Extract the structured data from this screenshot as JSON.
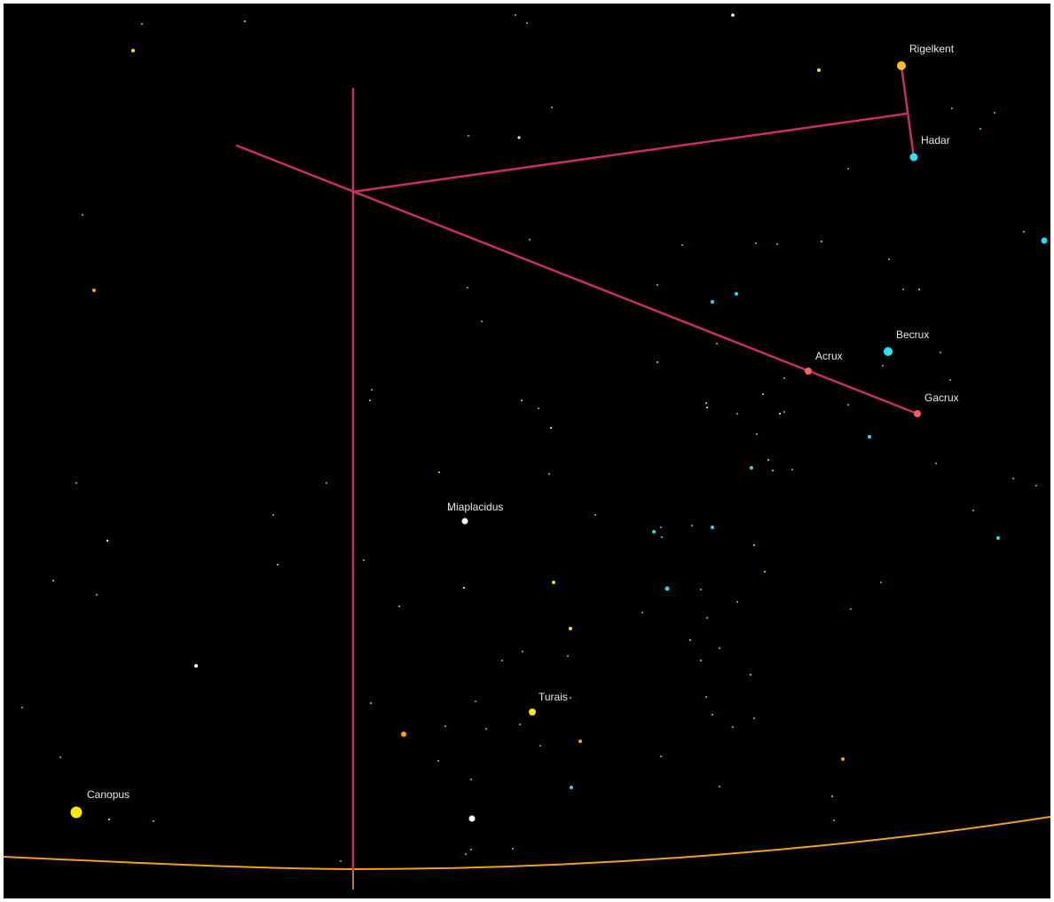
{
  "colors": {
    "background": "#000000",
    "constellation_line": "#c8305e",
    "horizon": "#f0a020",
    "label": "#e8e8e8",
    "star_white": "#ffffff",
    "star_yellow": "#ffe000",
    "star_orange": "#ffa020",
    "star_cyan": "#20e0f0",
    "star_salmon": "#ff6050"
  },
  "named_stars": [
    {
      "name": "Rigelkent",
      "color": "#ffc020"
    },
    {
      "name": "Hadar",
      "color": "#30e0f8"
    },
    {
      "name": "Becrux",
      "color": "#20e8f8"
    },
    {
      "name": "Acrux",
      "color": "#ff6458"
    },
    {
      "name": "Gacrux",
      "color": "#ff6050"
    },
    {
      "name": "Miaplacidus",
      "color": "#ffffff"
    },
    {
      "name": "Turais",
      "color": "#ffe020"
    },
    {
      "name": "Canopus",
      "color": "#ffe800"
    }
  ]
}
